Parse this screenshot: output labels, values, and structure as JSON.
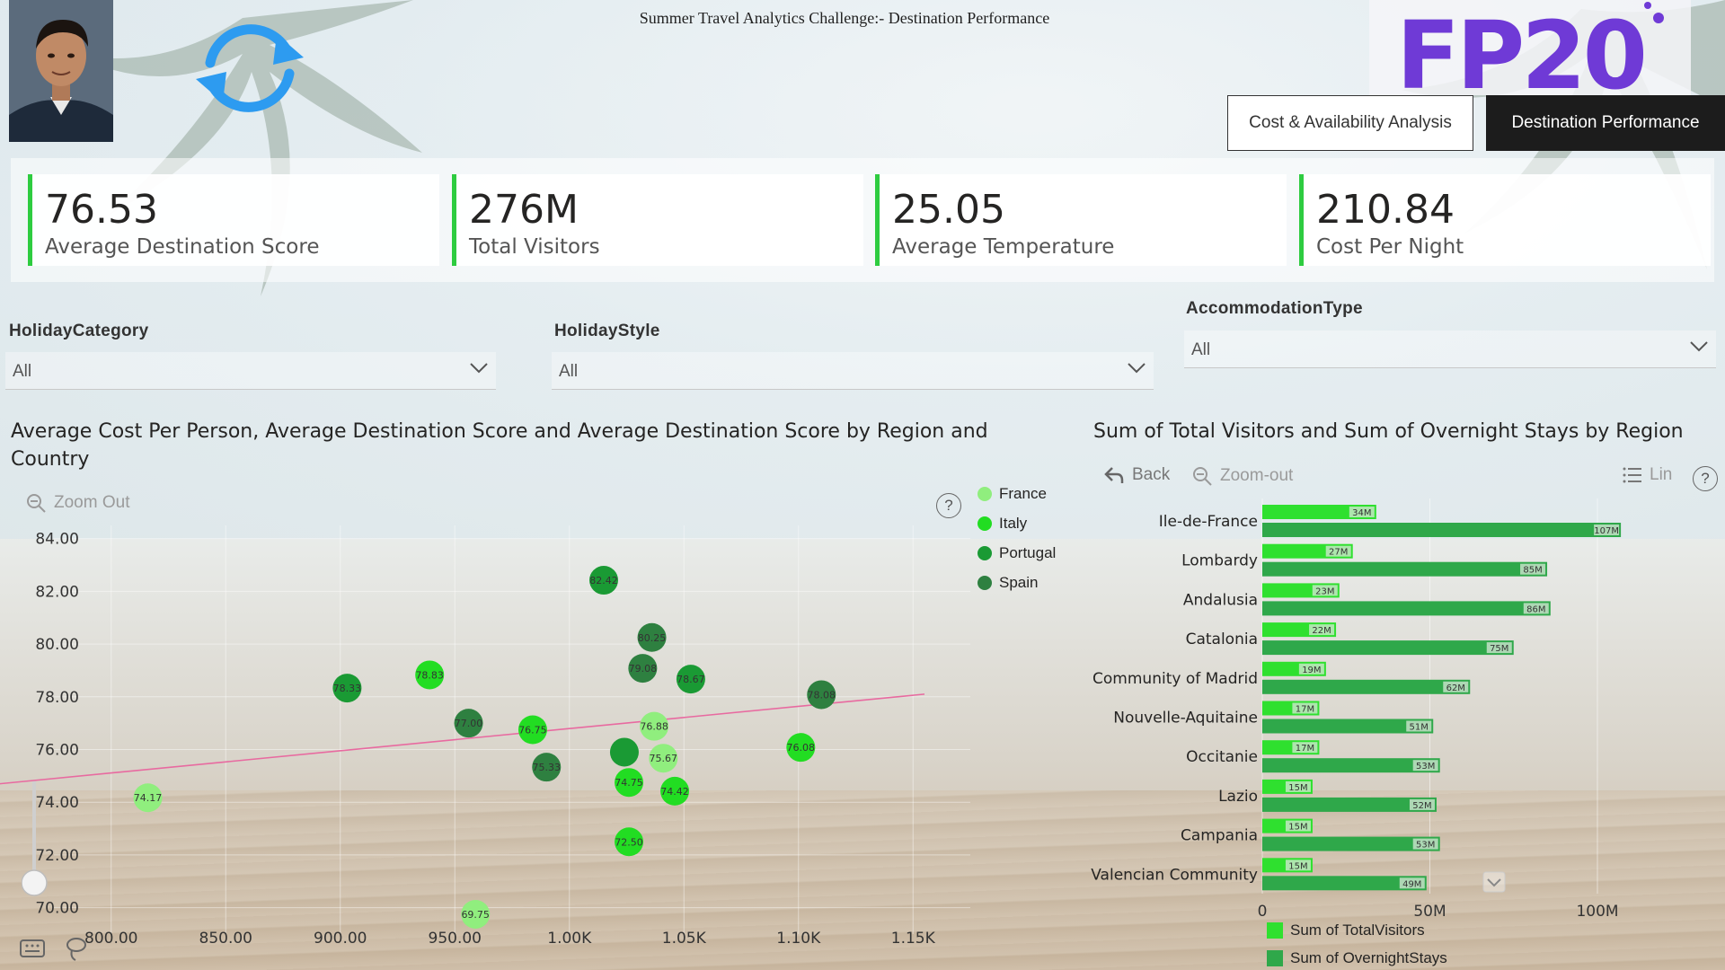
{
  "header": {
    "title": "Summer Travel Analytics Challenge:- Destination Performance",
    "logo_text": "FP20",
    "nav": {
      "cost": "Cost & Availability Analysis",
      "destination": "Destination Performance"
    }
  },
  "kpis": [
    {
      "value": "76.53",
      "label": "Average Destination Score"
    },
    {
      "value": "276M",
      "label": "Total Visitors"
    },
    {
      "value": "25.05",
      "label": "Average Temperature"
    },
    {
      "value": "210.84",
      "label": "Cost Per Night"
    }
  ],
  "slicers": {
    "holiday_category": {
      "title": "HolidayCategory",
      "value": "All"
    },
    "holiday_style": {
      "title": "HolidayStyle",
      "value": "All"
    },
    "accommodation_type": {
      "title": "AccommodationType",
      "value": "All"
    }
  },
  "scatter_visual": {
    "title": "Average Cost Per Person, Average Destination Score and Average Destination Score by Region and Country",
    "zoom_label": "Zoom Out",
    "help": "?"
  },
  "bar_visual": {
    "title": "Sum of Total Visitors and Sum of Overnight Stays by Region",
    "back_label": "Back",
    "zoom_label": "Zoom-out",
    "lin_label": "Lin",
    "help": "?"
  },
  "colors": {
    "France": "#90ee7e",
    "Italy": "#22dd22",
    "Portugal": "#1a9a34",
    "Spain": "#2e8040",
    "visitors": "#2fe02f",
    "stays": "#2fa84a",
    "kpi_accent": "#2ecc40",
    "trend": "#e86aa0"
  },
  "chart_data": [
    {
      "type": "scatter",
      "xlim": [
        775,
        1175
      ],
      "ylim": [
        69,
        84.5
      ],
      "x_ticks": [
        800,
        850,
        900,
        950,
        1000,
        1050,
        1100,
        1150
      ],
      "x_tick_labels": [
        "800.00",
        "850.00",
        "900.00",
        "950.00",
        "1.00K",
        "1.05K",
        "1.10K",
        "1.15K"
      ],
      "y_ticks": [
        70,
        72,
        74,
        76,
        78,
        80,
        82,
        84
      ],
      "y_tick_labels": [
        "70.00",
        "72.00",
        "74.00",
        "76.00",
        "78.00",
        "80.00",
        "82.00",
        "84.00"
      ],
      "legend": [
        "France",
        "Italy",
        "Portugal",
        "Spain"
      ],
      "trend_line": [
        [
          775,
          74.9
        ],
        [
          1155,
          78.1
        ]
      ],
      "points": [
        {
          "x": 816,
          "y": 74.17,
          "label": "74.17",
          "series": "France"
        },
        {
          "x": 903,
          "y": 78.33,
          "label": "78.33",
          "series": "Portugal"
        },
        {
          "x": 939,
          "y": 78.83,
          "label": "78.83",
          "series": "Italy"
        },
        {
          "x": 956,
          "y": 77.0,
          "label": "77.00",
          "series": "Spain"
        },
        {
          "x": 984,
          "y": 76.75,
          "label": "76.75",
          "series": "Italy"
        },
        {
          "x": 990,
          "y": 75.33,
          "label": "75.33",
          "series": "Spain"
        },
        {
          "x": 1015,
          "y": 82.42,
          "label": "82.42",
          "series": "Portugal"
        },
        {
          "x": 1024,
          "y": 75.9,
          "label": "",
          "series": "Portugal"
        },
        {
          "x": 1026,
          "y": 74.75,
          "label": "74.75",
          "series": "Italy"
        },
        {
          "x": 1026,
          "y": 72.5,
          "label": "72.50",
          "series": "Italy"
        },
        {
          "x": 1032,
          "y": 79.08,
          "label": "79.08",
          "series": "Spain"
        },
        {
          "x": 1036,
          "y": 80.25,
          "label": "80.25",
          "series": "Spain"
        },
        {
          "x": 1037,
          "y": 76.88,
          "label": "76.88",
          "series": "France"
        },
        {
          "x": 1041,
          "y": 75.67,
          "label": "75.67",
          "series": "France"
        },
        {
          "x": 1046,
          "y": 74.42,
          "label": "74.42",
          "series": "Italy"
        },
        {
          "x": 1053,
          "y": 78.67,
          "label": "78.67",
          "series": "Portugal"
        },
        {
          "x": 1101,
          "y": 76.08,
          "label": "76.08",
          "series": "Italy"
        },
        {
          "x": 1110,
          "y": 78.08,
          "label": "78.08",
          "series": "Spain"
        },
        {
          "x": 959,
          "y": 69.75,
          "label": "69.75",
          "series": "France"
        }
      ]
    },
    {
      "type": "bar",
      "orientation": "horizontal",
      "categories": [
        "Ile-de-France",
        "Lombardy",
        "Andalusia",
        "Catalonia",
        "Community of Madrid",
        "Nouvelle-Aquitaine",
        "Occitanie",
        "Lazio",
        "Campania",
        "Valencian Community"
      ],
      "series": [
        {
          "name": "Sum of TotalVisitors",
          "values": [
            34,
            27,
            23,
            22,
            19,
            17,
            17,
            15,
            15,
            15
          ],
          "labels": [
            "34M",
            "27M",
            "23M",
            "22M",
            "19M",
            "17M",
            "17M",
            "15M",
            "15M",
            "15M"
          ]
        },
        {
          "name": "Sum of OvernightStays",
          "values": [
            107,
            85,
            86,
            75,
            62,
            51,
            53,
            52,
            53,
            49
          ],
          "labels": [
            "107M",
            "85M",
            "86M",
            "75M",
            "62M",
            "51M",
            "53M",
            "52M",
            "53M",
            "49M"
          ]
        }
      ],
      "x_ticks": [
        0,
        50,
        100
      ],
      "x_tick_labels": [
        "0",
        "50M",
        "100M"
      ],
      "xlim": [
        0,
        120
      ]
    }
  ]
}
